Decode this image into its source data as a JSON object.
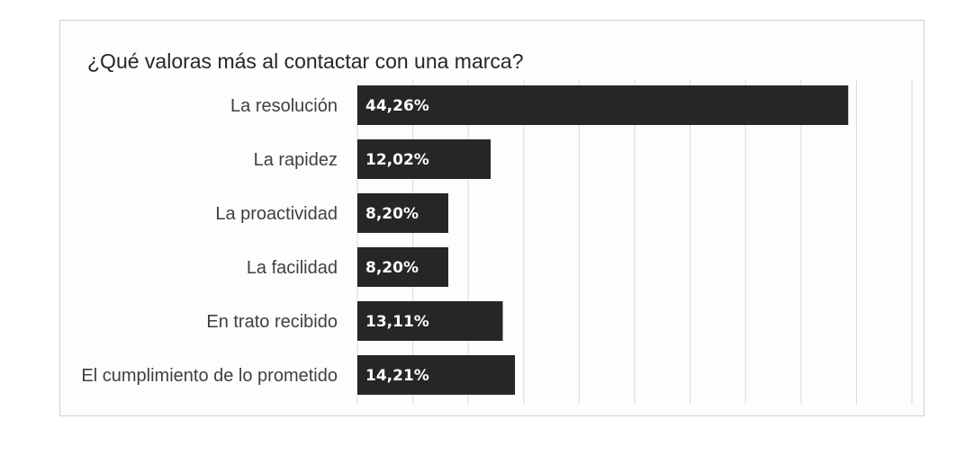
{
  "chart_data": {
    "type": "bar",
    "orientation": "horizontal",
    "title": "¿Qué valoras más al contactar con una marca?",
    "categories": [
      "La resolución",
      "La rapidez",
      "La proactividad",
      "La facilidad",
      "En trato recibido",
      "El cumplimiento de lo prometido"
    ],
    "values": [
      44.26,
      12.02,
      8.2,
      8.2,
      13.11,
      14.21
    ],
    "value_labels": [
      "44,26%",
      "12,02%",
      "8,20%",
      "8,20%",
      "13,11%",
      "14,21%"
    ],
    "xlim": [
      0,
      50
    ],
    "grid": true,
    "gridline_count": 10,
    "bar_color": "#262626",
    "value_label_color": "#ffffff",
    "legend": "none"
  }
}
